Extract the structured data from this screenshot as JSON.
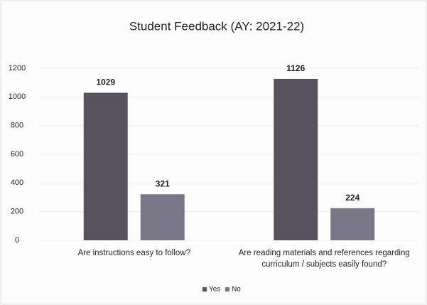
{
  "chart_data": {
    "type": "bar",
    "title": "Student Feedback (AY: 2021-22)",
    "categories": [
      "Are instructions easy to follow?",
      "Are reading materials and references regarding curriculum / subjects easily found?"
    ],
    "series": [
      {
        "name": "Yes",
        "color": "#56535f",
        "values": [
          1029,
          1126
        ]
      },
      {
        "name": "No",
        "color": "#7a7788",
        "values": [
          321,
          224
        ]
      }
    ],
    "ylim": [
      0,
      1200
    ],
    "yticks": [
      0,
      200,
      400,
      600,
      800,
      1000,
      1200
    ],
    "grid": true,
    "legend": "bottom"
  }
}
